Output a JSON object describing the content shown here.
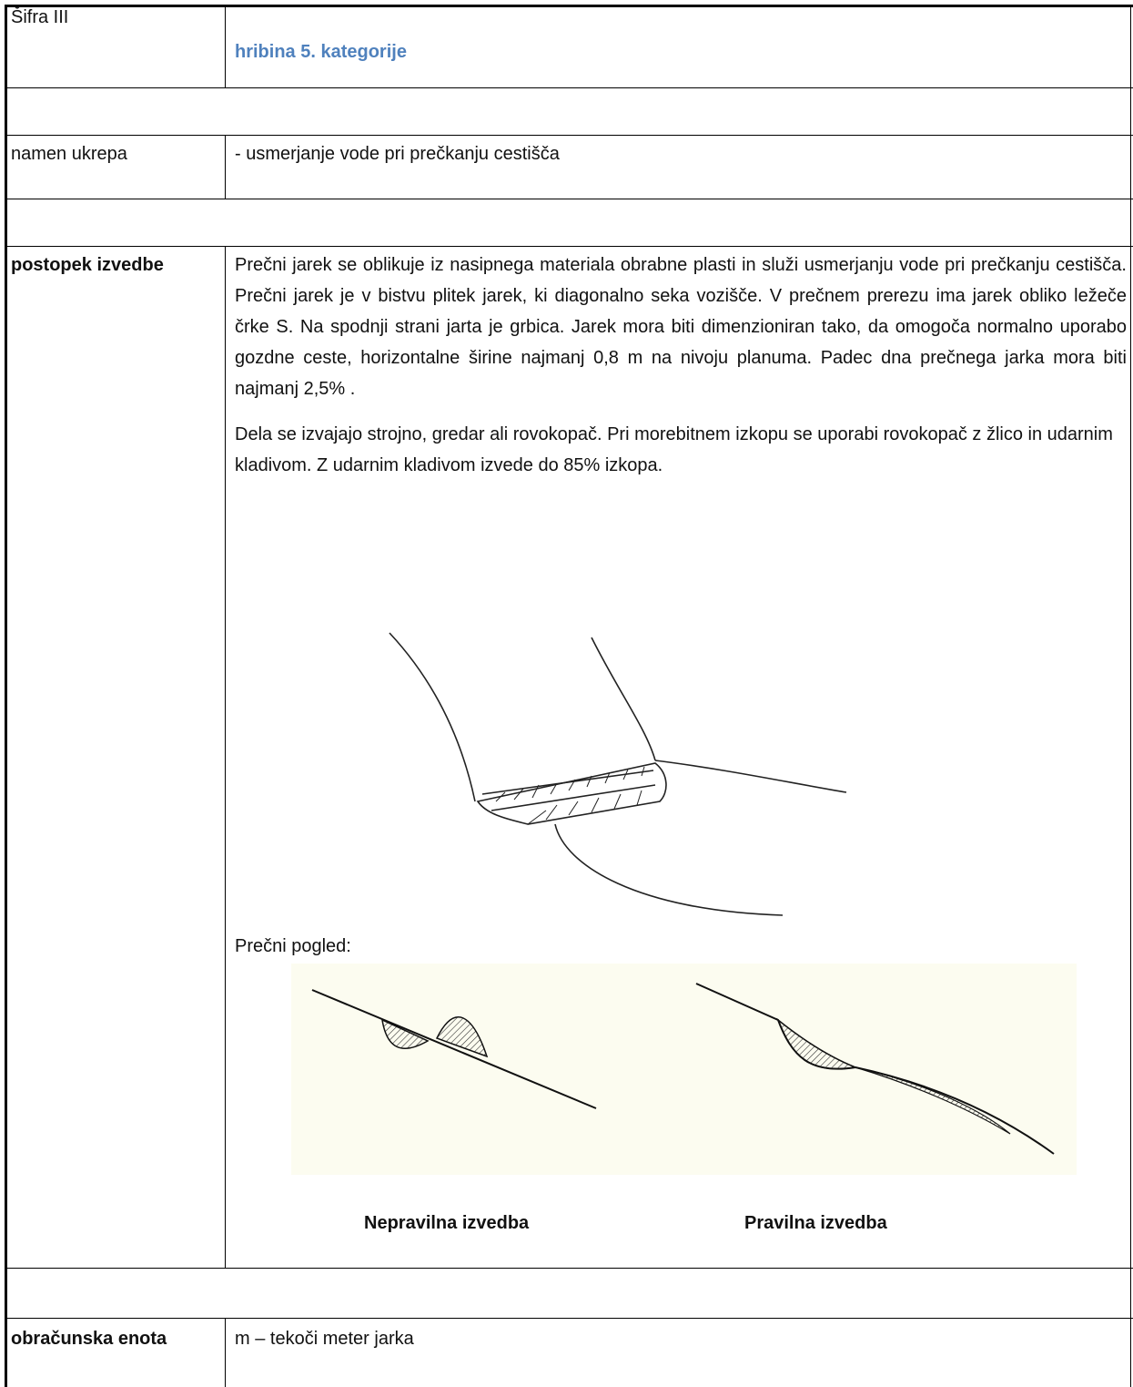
{
  "table": {
    "code": "Šifra III",
    "category": "hribina 5. kategorije",
    "purpose": {
      "label": "namen ukrepa",
      "text": "- usmerjanje vode pri prečkanju cestišča"
    },
    "procedure": {
      "label": "postopek izvedbe",
      "paragraphs": [
        "Prečni jarek se oblikuje iz nasipnega materiala obrabne plasti in služi usmerjanju vode pri prečkanju cestišča. Prečni jarek je v bistvu plitek jarek, ki diagonalno seka vozišče. V prečnem prerezu ima jarek obliko ležeče črke S. Na spodnji strani jarta je grbica. Jarek mora biti dimenzioniran tako, da omogoča normalno uporabo gozdne ceste, horizontalne širine najmanj 0,8 m na nivoju planuma. Padec dna prečnega jarka mora biti najmanj 2,5% .",
        "Dela se izvajajo strojno, gredar ali rovokopač. Pri morebitnem izkopu se uporabi rovokopač z žlico in udarnim kladivom. Z udarnim kladivom izvede do 85% izkopa."
      ],
      "view_label": "Prečni pogled:",
      "captions": [
        "Nepravilna izvedba",
        "Pravilna izvedba"
      ]
    },
    "unit": {
      "label": "obračunska enota",
      "text": "m – tekoči meter jarka"
    }
  }
}
